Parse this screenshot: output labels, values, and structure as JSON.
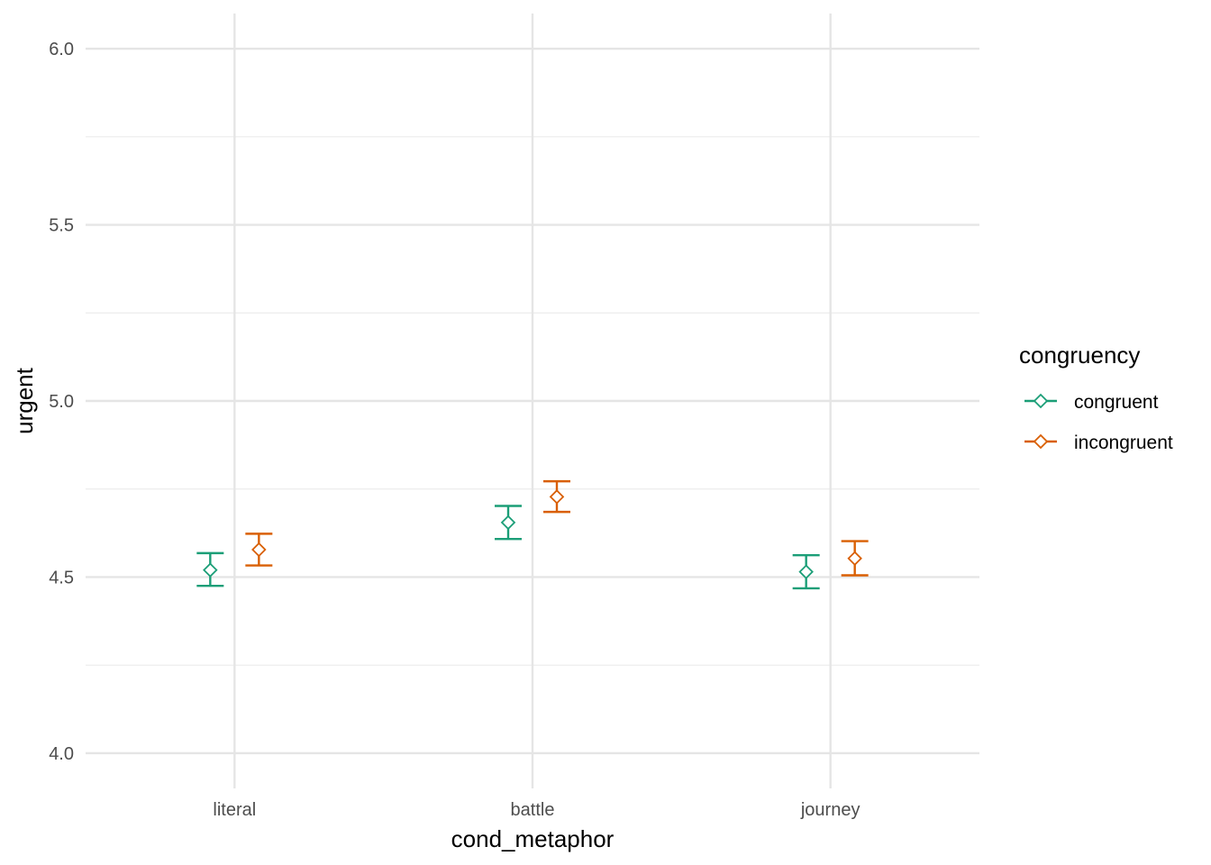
{
  "chart_data": {
    "type": "scatter",
    "subtype": "point-with-errorbars",
    "xlabel": "cond_metaphor",
    "ylabel": "urgent",
    "categories": [
      "literal",
      "battle",
      "journey"
    ],
    "ylim": [
      3.9,
      6.1
    ],
    "yticks": [
      "4.0",
      "4.5",
      "5.0",
      "5.5",
      "6.0"
    ],
    "grid": true,
    "marker": "diamond-open",
    "legend": {
      "title": "congruency",
      "position": "right"
    },
    "series": [
      {
        "name": "congruent",
        "color": "#1b9e77",
        "values": [
          4.52,
          4.655,
          4.515
        ],
        "lower": [
          4.475,
          4.608,
          4.468
        ],
        "upper": [
          4.568,
          4.702,
          4.562
        ]
      },
      {
        "name": "incongruent",
        "color": "#d95f02",
        "values": [
          4.578,
          4.728,
          4.553
        ],
        "lower": [
          4.533,
          4.685,
          4.505
        ],
        "upper": [
          4.623,
          4.772,
          4.602
        ]
      }
    ]
  }
}
